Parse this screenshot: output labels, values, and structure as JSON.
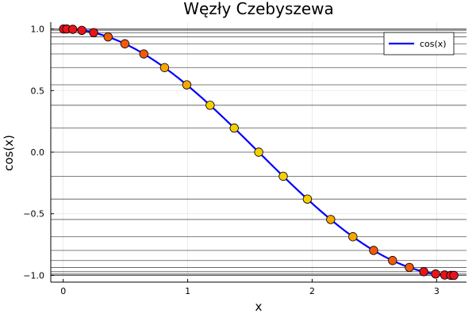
{
  "chart_data": {
    "type": "line",
    "title": "Węzły Czebyszewa",
    "xlabel": "x",
    "ylabel": "cos(x)",
    "xlim": [
      -0.1,
      3.24
    ],
    "ylim": [
      -1.055,
      1.055
    ],
    "xticks": [
      0,
      1,
      2,
      3
    ],
    "xtick_labels": [
      "0",
      "1",
      "2",
      "3"
    ],
    "yticks": [
      -1.0,
      -0.5,
      0.0,
      0.5,
      1.0
    ],
    "ytick_labels": [
      "−1.0",
      "−0.5",
      "0.0",
      "0.5",
      "1.0"
    ],
    "grid": true,
    "legend": {
      "position": "top-right",
      "entries": [
        {
          "label": "cos(x)",
          "color": "#0000ff"
        }
      ]
    },
    "series": [
      {
        "name": "cos(x)",
        "function": "cos",
        "x_range": [
          0,
          3.14159
        ],
        "color": "#0000ff"
      }
    ],
    "chebyshev_nodes": {
      "count": 25,
      "x_range": [
        0,
        3.14159
      ],
      "hline_color": "#555555",
      "marker_colors": [
        "#e8141a",
        "#f05a0f",
        "#f5a800",
        "#f5d000"
      ]
    }
  }
}
